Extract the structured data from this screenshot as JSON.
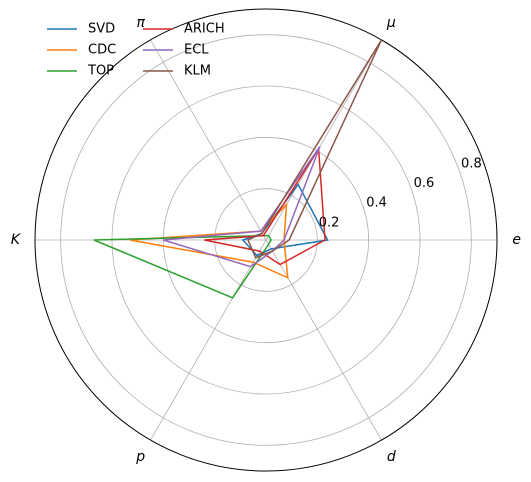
{
  "chart_data": {
    "type": "radar",
    "axes": [
      "e",
      "μ",
      "π",
      "K",
      "p",
      "d"
    ],
    "radial_ticks": [
      "0.2",
      "0.4",
      "0.6",
      "0.8"
    ],
    "rlim": [
      0,
      0.9
    ],
    "grid": true,
    "legend_position": "top-left",
    "series": [
      {
        "name": "SVD",
        "color": "#1f77b4",
        "values": [
          0.24,
          0.25,
          0.03,
          0.09,
          0.07,
          0.04
        ]
      },
      {
        "name": "CDC",
        "color": "#ff7f0e",
        "values": [
          0.07,
          0.16,
          0.04,
          0.53,
          0.1,
          0.17
        ]
      },
      {
        "name": "TOP",
        "color": "#2ca02c",
        "values": [
          0.02,
          0.02,
          0.02,
          0.67,
          0.26,
          0.02
        ]
      },
      {
        "name": "ARICH",
        "color": "#d62728",
        "values": [
          0.23,
          0.41,
          0.02,
          0.24,
          0.05,
          0.11
        ]
      },
      {
        "name": "ECL",
        "color": "#9467bd",
        "values": [
          0.07,
          0.42,
          0.04,
          0.4,
          0.12,
          0.05
        ]
      },
      {
        "name": "KLM",
        "color": "#8c564b",
        "values": [
          0.09,
          0.9,
          0.03,
          0.07,
          0.08,
          0.05
        ]
      }
    ]
  }
}
